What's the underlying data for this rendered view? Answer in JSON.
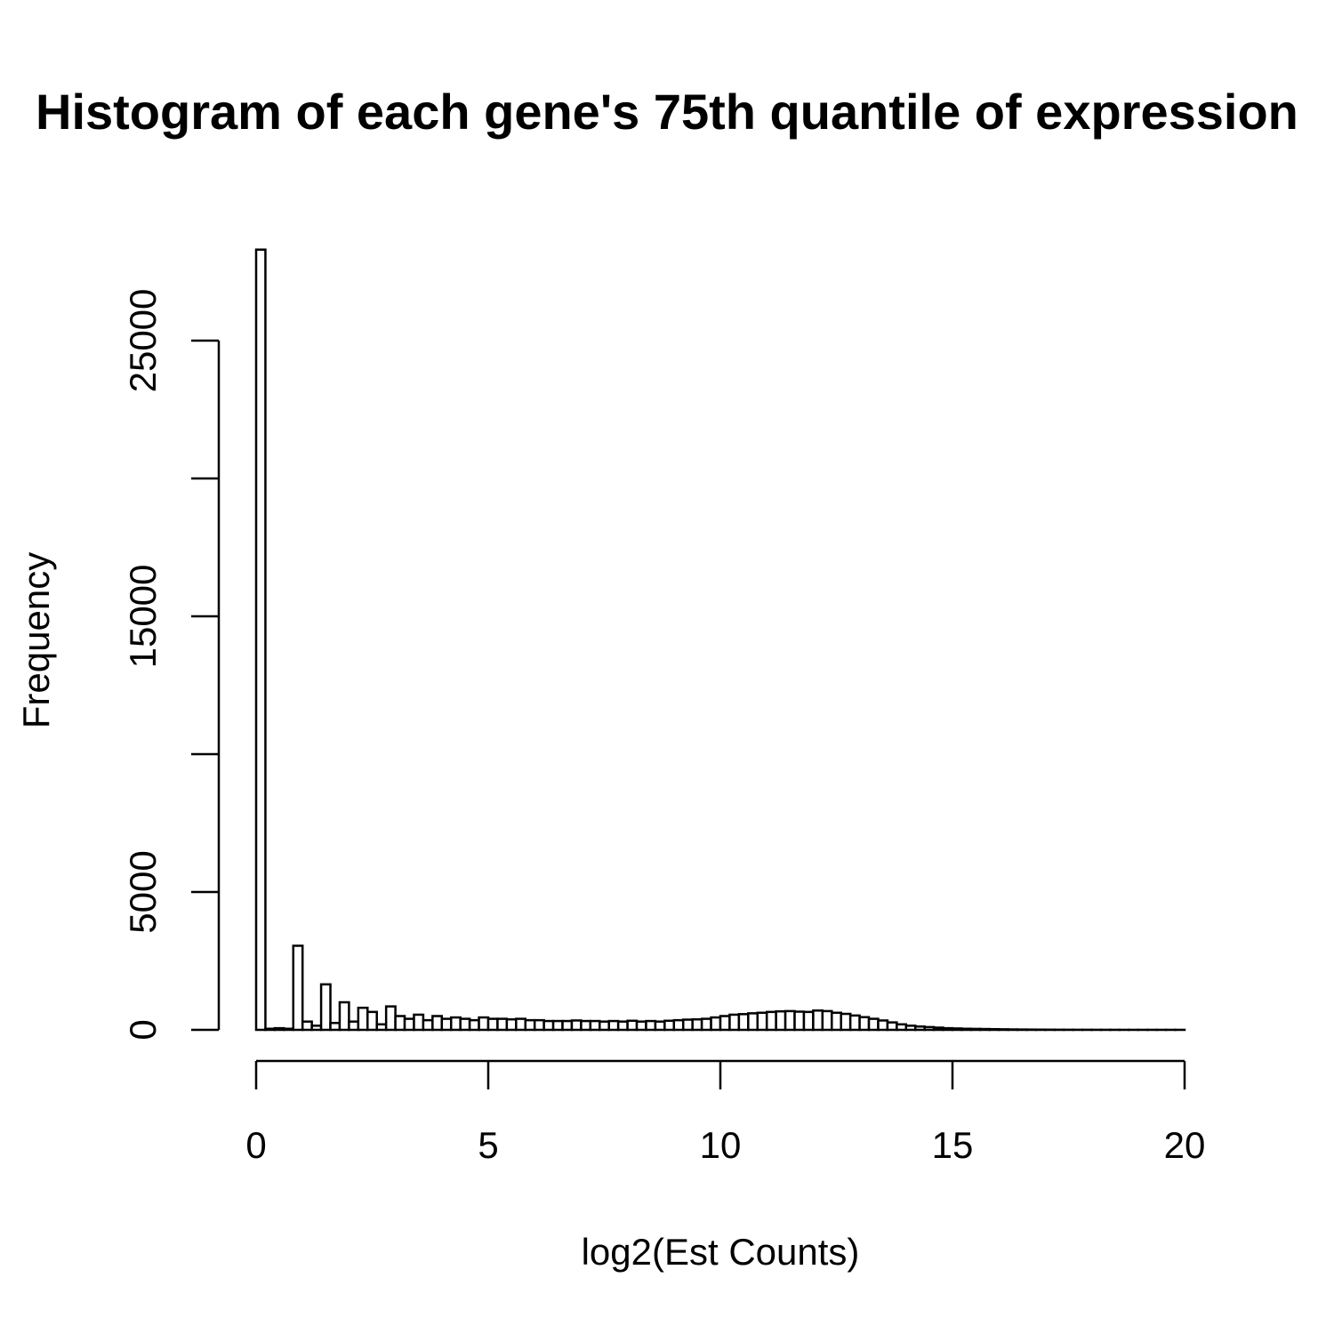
{
  "chart_data": {
    "type": "bar",
    "title": "Histogram of each gene's 75th quantile of expression",
    "xlabel": "log2(Est Counts)",
    "ylabel": "Frequency",
    "xlim": [
      0,
      20
    ],
    "ylim": [
      0,
      28300
    ],
    "x_ticks": [
      0,
      5,
      10,
      15,
      20
    ],
    "x_tick_labels": [
      "0",
      "5",
      "10",
      "15",
      "20"
    ],
    "y_ticks": [
      0,
      5000,
      10000,
      15000,
      20000,
      25000
    ],
    "y_tick_labels": [
      "0",
      "5000",
      "",
      "15000",
      "",
      "25000"
    ],
    "bin_width": 0.2,
    "bin_start": 0,
    "values": [
      28300,
      40,
      60,
      40,
      3050,
      300,
      150,
      1650,
      250,
      1000,
      300,
      800,
      650,
      200,
      850,
      500,
      400,
      550,
      350,
      500,
      400,
      450,
      400,
      350,
      450,
      400,
      400,
      380,
      400,
      350,
      350,
      320,
      320,
      320,
      340,
      320,
      320,
      300,
      320,
      300,
      330,
      300,
      320,
      300,
      330,
      350,
      370,
      380,
      400,
      450,
      500,
      550,
      570,
      600,
      620,
      650,
      670,
      680,
      660,
      650,
      700,
      680,
      620,
      580,
      520,
      460,
      400,
      340,
      270,
      200,
      150,
      120,
      100,
      80,
      60,
      50,
      40,
      35,
      30,
      25,
      20,
      15,
      12,
      10,
      8,
      6,
      5,
      4,
      3,
      3,
      2,
      2,
      2,
      1,
      1,
      1,
      1,
      1,
      1,
      1
    ]
  }
}
